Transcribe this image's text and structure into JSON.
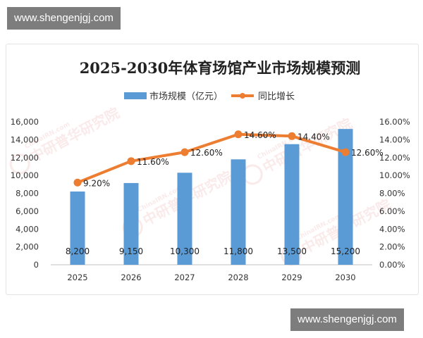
{
  "watermark": {
    "site": "www.shengenjgj.com"
  },
  "chart_data": {
    "type": "bar",
    "title": "2025-2030年体育场馆产业市场规模预测",
    "categories": [
      "2025",
      "2026",
      "2027",
      "2028",
      "2029",
      "2030"
    ],
    "series": [
      {
        "name": "市场规模（亿元）",
        "type": "bar",
        "axis": "left",
        "values": [
          8200,
          9150,
          10300,
          11800,
          13500,
          15200
        ],
        "labels": [
          "8,200",
          "9,150",
          "10,300",
          "11,800",
          "13,500",
          "15,200"
        ],
        "color": "#5b9bd5"
      },
      {
        "name": "同比增长",
        "type": "line",
        "axis": "right",
        "values": [
          9.2,
          11.6,
          12.6,
          14.6,
          14.4,
          12.6
        ],
        "labels": [
          "9.20%",
          "11.60%",
          "12.60%",
          "14.60%",
          "14.40%",
          "12.60%"
        ],
        "color": "#ed7d31"
      }
    ],
    "y_left": {
      "min": 0,
      "max": 16000,
      "ticks": [
        "0",
        "2,000",
        "4,000",
        "6,000",
        "8,000",
        "10,000",
        "12,000",
        "14,000",
        "16,000"
      ]
    },
    "y_right": {
      "min": 0,
      "max": 16,
      "ticks": [
        "0.00%",
        "2.00%",
        "4.00%",
        "6.00%",
        "8.00%",
        "10.00%",
        "12.00%",
        "14.00%",
        "16.00%"
      ]
    },
    "grid": false,
    "legend": "top-center",
    "stamp": {
      "text_cn": "中研普华研究院",
      "text_en": "ChinaIRN.com"
    }
  }
}
